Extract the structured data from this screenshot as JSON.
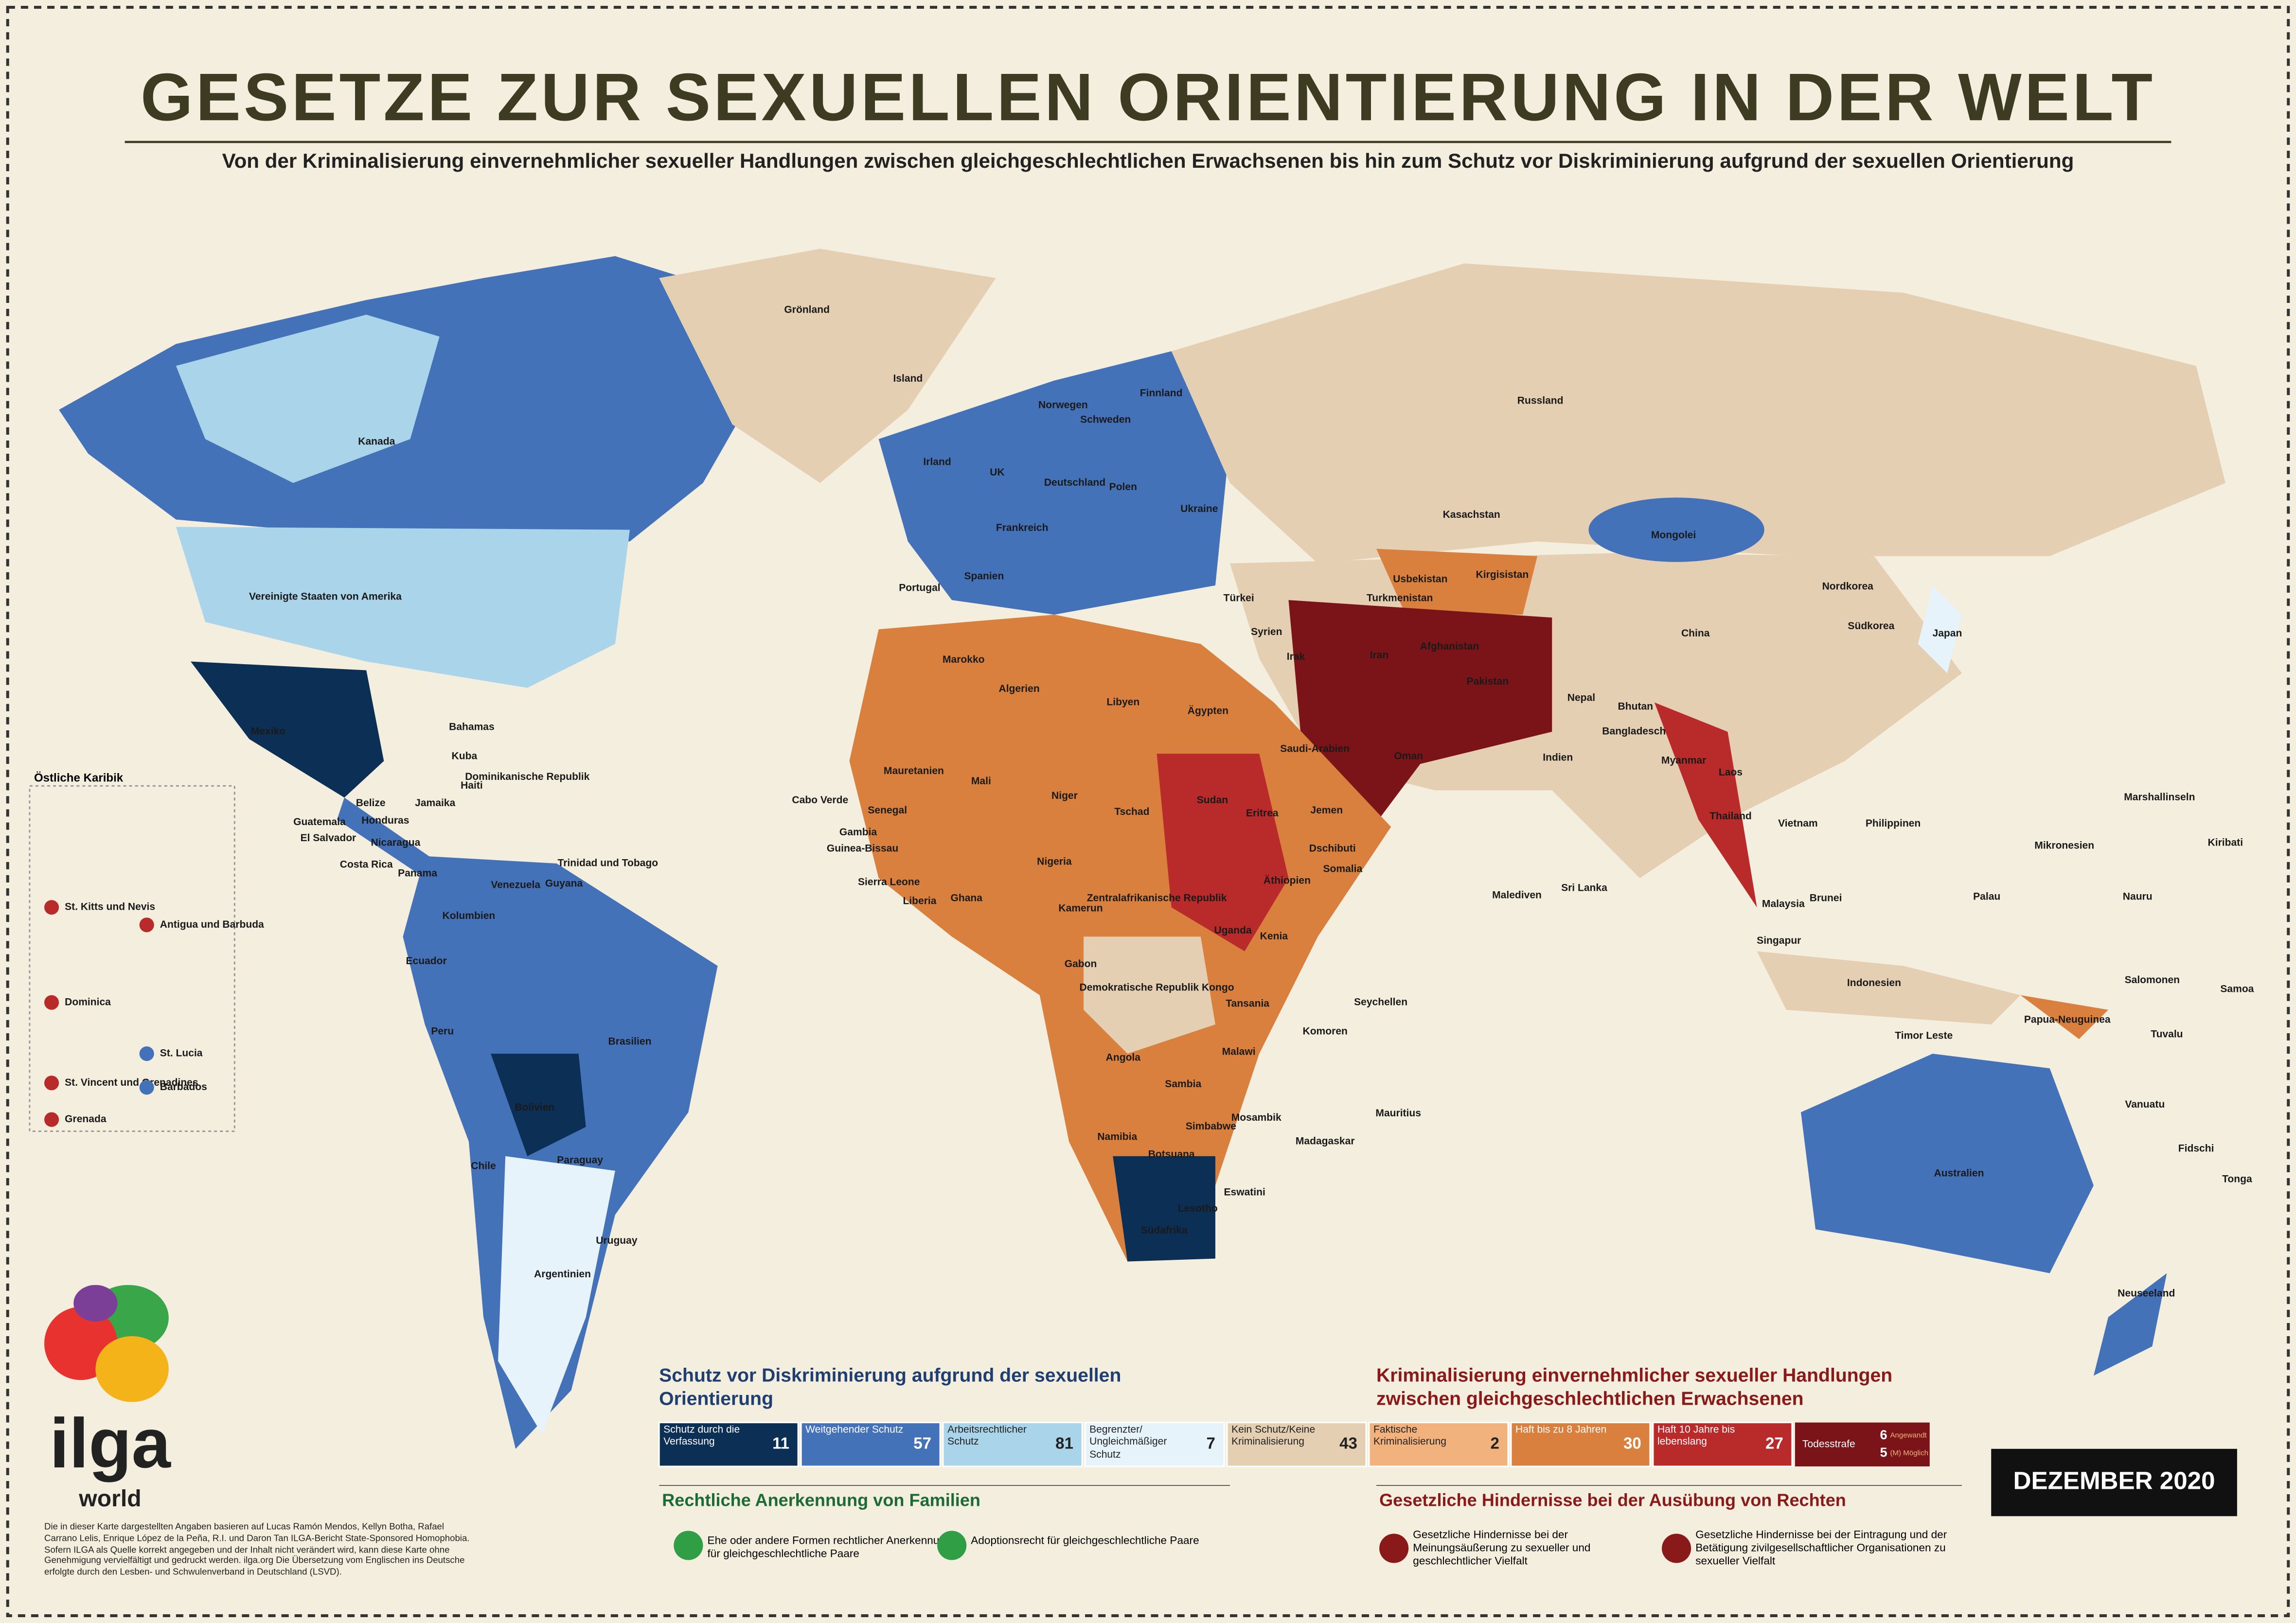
{
  "header": {
    "title": "GESETZE ZUR SEXUELLEN ORIENTIERUNG IN DER WELT",
    "subtitle": "Von der Kriminalisierung einvernehmlicher sexueller Handlungen zwischen gleichgeschlechtlichen Erwachsenen bis hin zum Schutz vor Diskriminierung aufgrund der sexuellen Orientierung"
  },
  "map": {
    "countries": [
      "Kanada",
      "Vereinigte Staaten von Amerika",
      "Mexiko",
      "Bahamas",
      "Kuba",
      "Dominikanische Republik",
      "Haiti",
      "Jamaika",
      "Belize",
      "Honduras",
      "Guatemala",
      "El Salvador",
      "Nicaragua",
      "Costa Rica",
      "Panama",
      "Trinidad und Tobago",
      "Venezuela",
      "Kolumbien",
      "Guyana",
      "Ecuador",
      "Peru",
      "Brasilien",
      "Bolivien",
      "Paraguay",
      "Chile",
      "Uruguay",
      "Argentinien",
      "Grönland",
      "Island",
      "Irland",
      "UK",
      "Norwegen",
      "Schweden",
      "Finnland",
      "Deutschland",
      "Polen",
      "Frankreich",
      "Spanien",
      "Portugal",
      "Ukraine",
      "Russland",
      "Kasachstan",
      "Mongolei",
      "China",
      "Japan",
      "Nordkorea",
      "Südkorea",
      "Türkei",
      "Syrien",
      "Irak",
      "Iran",
      "Afghanistan",
      "Pakistan",
      "Turkmenistan",
      "Usbekistan",
      "Kirgisistan",
      "Indien",
      "Nepal",
      "Bhutan",
      "Bangladesch",
      "Myanmar",
      "Laos",
      "Thailand",
      "Vietnam",
      "Philippinen",
      "Malaysia",
      "Brunei",
      "Singapur",
      "Indonesien",
      "Timor Leste",
      "Papua-Neuguinea",
      "Australien",
      "Neuseeland",
      "Marokko",
      "Algerien",
      "Libyen",
      "Ägypten",
      "Saudi-Arabien",
      "Oman",
      "Jemen",
      "Mauretanien",
      "Mali",
      "Niger",
      "Tschad",
      "Sudan",
      "Eritrea",
      "Dschibuti",
      "Äthiopien",
      "Somalia",
      "Nigeria",
      "Kamerun",
      "Ghana",
      "Senegal",
      "Gambia",
      "Guinea-Bissau",
      "Sierra Leone",
      "Liberia",
      "Cabo Verde",
      "Zentralafrikanische Republik",
      "Gabon",
      "Uganda",
      "Kenia",
      "Tansania",
      "Demokratische Republik Kongo",
      "Angola",
      "Sambia",
      "Malawi",
      "Simbabwe",
      "Mosambik",
      "Namibia",
      "Botsuana",
      "Südafrika",
      "Lesotho",
      "Eswatini",
      "Madagaskar",
      "Komoren",
      "Seychellen",
      "Mauritius",
      "Malediven",
      "Sri Lanka",
      "Marshallinseln",
      "Mikronesien",
      "Palau",
      "Nauru",
      "Kiribati",
      "Salomonen",
      "Samoa",
      "Tuvalu",
      "Vanuatu",
      "Fidschi",
      "Tonga"
    ],
    "inset_title": "Östliche Karibik",
    "inset": [
      "St. Kitts und Nevis",
      "Antigua und Barbuda",
      "Dominica",
      "St. Lucia",
      "St. Vincent und Grenadines",
      "Barbados",
      "Grenada"
    ]
  },
  "legend": {
    "protection_title": "Schutz vor Diskriminierung aufgrund der sexuellen Orientierung",
    "protection": [
      {
        "label": "Schutz durch die Verfassung",
        "count": 11
      },
      {
        "label": "Weitgehender Schutz",
        "count": 57
      },
      {
        "label": "Arbeitsrechtlicher Schutz",
        "count": 81
      },
      {
        "label": "Begrenzter/ Ungleichmäßiger Schutz",
        "count": 7
      }
    ],
    "neutral": {
      "label": "Kein Schutz/Keine Kriminalisierung",
      "count": 43
    },
    "criminalization_title": "Kriminalisierung einvernehmlicher sexueller Handlungen zwischen gleichgeschlechtlichen Erwachsenen",
    "criminalization": [
      {
        "label": "Faktische Kriminalisierung",
        "count": 2
      },
      {
        "label": "Haft bis zu 8 Jahren",
        "count": 30
      },
      {
        "label": "Haft 10 Jahre bis lebenslang",
        "count": 27
      }
    ],
    "death": {
      "label": "Todesstrafe",
      "applied_count": 6,
      "applied_label": "Angewandt",
      "possible_count": 5,
      "possible_label": "(M) Möglich"
    },
    "family_title": "Rechtliche Anerkennung von Familien",
    "family": [
      "Ehe oder andere Formen rechtlicher Anerkennung für gleichgeschlechtliche Paare",
      "Adoptionsrecht für gleichgeschlechtliche Paare"
    ],
    "barriers_title": "Gesetzliche Hindernisse bei der Ausübung von Rechten",
    "barriers": [
      "Gesetzliche Hindernisse bei der Meinungsäußerung zu sexueller und geschlechtlicher Vielfalt",
      "Gesetzliche Hindernisse bei der Eintragung und der Betätigung zivilgesellschaftlicher Organisationen zu sexueller Vielfalt"
    ]
  },
  "date": "DEZEMBER 2020",
  "logo": {
    "name": "ilga",
    "sub": "world"
  },
  "credits": "Die in dieser Karte dargestellten Angaben basieren auf Lucas Ramón Mendos, Kellyn Botha, Rafael Carrano Lelis, Enrique López de la Peña, R.I. und Daron Tan ILGA-Bericht State-Sponsored Homophobia. Sofern ILGA als Quelle korrekt angegeben und der Inhalt nicht verändert wird, kann diese Karte ohne Genehmigung vervielfältigt und gedruckt werden. ilga.org  Die Übersetzung vom Englischen ins Deutsche erfolgte durch den Lesben- und Schwulenverband in Deutschland (LSVD)."
}
